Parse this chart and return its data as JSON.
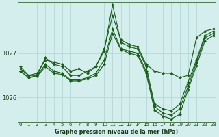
{
  "title": "Graphe pression niveau de la mer (hPa)",
  "background_color": "#d4eeee",
  "grid_color": "#aed4d4",
  "line_color": "#1a5c1a",
  "xlim": [
    -0.3,
    23.3
  ],
  "ylim": [
    1025.45,
    1028.15
  ],
  "yticks": [
    1026,
    1027
  ],
  "xticks": [
    0,
    1,
    2,
    3,
    4,
    5,
    6,
    7,
    8,
    9,
    10,
    11,
    12,
    13,
    14,
    15,
    16,
    17,
    18,
    19,
    20,
    21,
    22,
    23
  ],
  "series": [
    [
      1026.65,
      1026.5,
      1026.55,
      1026.85,
      1026.8,
      1026.75,
      1026.6,
      1026.65,
      1026.55,
      1026.7,
      1027.1,
      1027.85,
      1027.3,
      1027.2,
      1027.15,
      1026.75,
      1026.6,
      1026.55,
      1026.55,
      1026.45,
      1026.5,
      1027.35,
      1027.5,
      1027.55
    ],
    [
      1026.7,
      1026.5,
      1026.5,
      1026.9,
      1026.75,
      1026.7,
      1026.5,
      1026.5,
      1026.6,
      1026.7,
      1027.05,
      1028.1,
      1027.25,
      1027.15,
      1027.1,
      1026.7,
      1025.85,
      1025.75,
      1025.7,
      1025.85,
      1026.35,
      1026.85,
      1027.4,
      1027.5
    ],
    [
      1026.6,
      1026.45,
      1026.5,
      1026.75,
      1026.6,
      1026.55,
      1026.4,
      1026.4,
      1026.45,
      1026.55,
      1026.85,
      1027.55,
      1027.1,
      1027.05,
      1027.0,
      1026.6,
      1025.8,
      1025.65,
      1025.6,
      1025.75,
      1026.25,
      1026.8,
      1027.35,
      1027.45
    ],
    [
      1026.6,
      1026.45,
      1026.48,
      1026.7,
      1026.55,
      1026.52,
      1026.38,
      1026.38,
      1026.42,
      1026.5,
      1026.75,
      1027.45,
      1027.08,
      1027.0,
      1026.95,
      1026.55,
      1025.72,
      1025.58,
      1025.52,
      1025.62,
      1026.18,
      1026.72,
      1027.28,
      1027.4
    ]
  ]
}
